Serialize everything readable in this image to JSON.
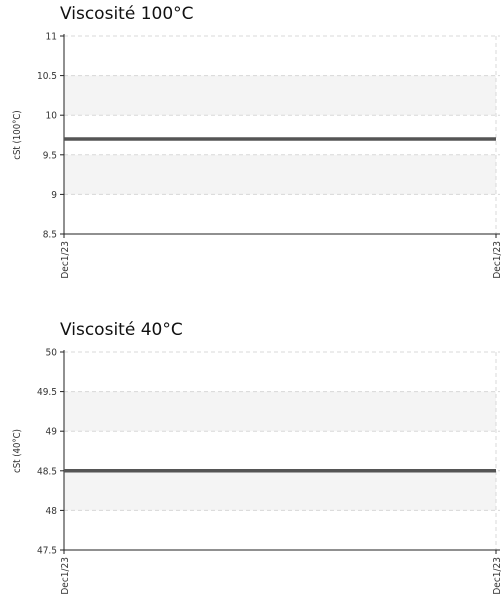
{
  "chart_data": [
    {
      "type": "line",
      "title": "Viscosité 100°C",
      "ylabel": "cSt (100°C)",
      "xlabel": "",
      "x": [
        "Dec1/23",
        "Dec1/23"
      ],
      "y_ticks": [
        "8.5",
        "9",
        "9.5",
        "10",
        "10.5",
        "11"
      ],
      "ylim": [
        8.5,
        11
      ],
      "bands": [
        [
          9.0,
          9.5
        ],
        [
          10.0,
          10.5
        ]
      ],
      "series": [
        {
          "values": [
            9.7,
            9.7
          ]
        }
      ],
      "grid": true,
      "colors": {
        "line": "#555555",
        "band": "#f4f4f4",
        "grid": "#d8d8d8",
        "axis": "#222222"
      }
    },
    {
      "type": "line",
      "title": "Viscosité 40°C",
      "ylabel": "cSt (40°C)",
      "xlabel": "",
      "x": [
        "Dec1/23",
        "Dec1/23"
      ],
      "y_ticks": [
        "47.5",
        "48",
        "48.5",
        "49",
        "49.5",
        "50"
      ],
      "ylim": [
        47.5,
        50
      ],
      "bands": [
        [
          48.0,
          48.5
        ],
        [
          49.0,
          49.5
        ]
      ],
      "series": [
        {
          "values": [
            48.5,
            48.5
          ]
        }
      ],
      "grid": true,
      "colors": {
        "line": "#555555",
        "band": "#f4f4f4",
        "grid": "#d8d8d8",
        "axis": "#222222"
      }
    }
  ]
}
